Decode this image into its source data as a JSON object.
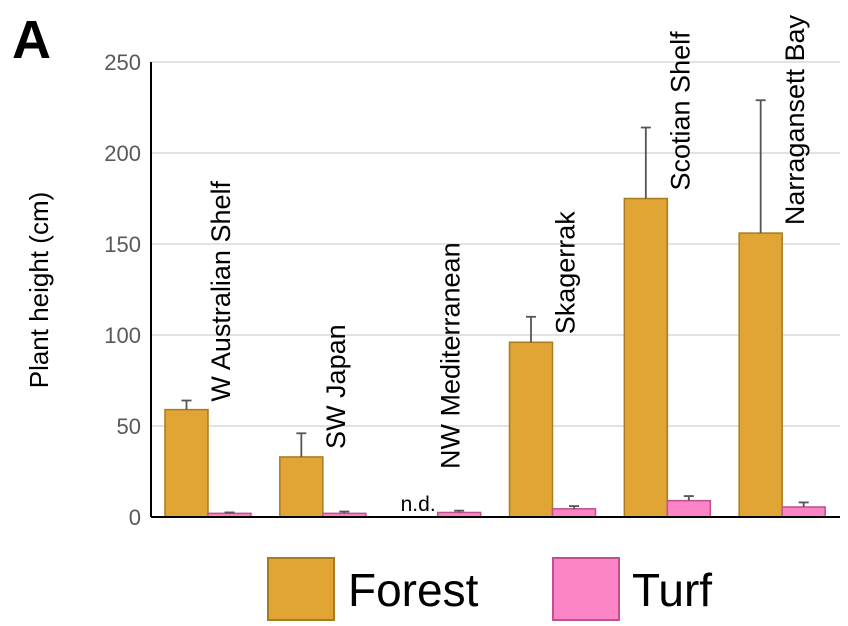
{
  "panel_label": "A",
  "legend": {
    "forest_label": "Forest",
    "turf_label": "Turf"
  },
  "colors": {
    "forest_fill": "#E0A534",
    "forest_stroke": "#A87B20",
    "turf_fill": "#FA84C6",
    "turf_stroke": "#C0508E",
    "grid": "#D9D9D9",
    "axis": "#000000",
    "error_bar": "#555555"
  },
  "chart_data": {
    "type": "bar",
    "ylabel": "Plant height (cm)",
    "ylim": [
      0,
      250
    ],
    "yticks": [
      0,
      50,
      100,
      150,
      200,
      250
    ],
    "grid": true,
    "legend_position": "bottom",
    "categories": [
      "W Australian Shelf",
      "SW Japan",
      "NW Mediterranean",
      "Skagerrak",
      "Scotian Shelf",
      "Narragansett Bay"
    ],
    "series": [
      {
        "name": "Forest",
        "values": [
          59,
          33,
          null,
          96,
          175,
          156
        ],
        "errors": [
          5,
          13,
          null,
          14,
          39,
          73
        ]
      },
      {
        "name": "Turf",
        "values": [
          2,
          2,
          2.5,
          4.5,
          9,
          5.5
        ],
        "errors": [
          0.5,
          1,
          1,
          1.5,
          2.5,
          2.5
        ]
      }
    ],
    "annotations": [
      {
        "category": "NW Mediterranean",
        "series": "Forest",
        "text": "n.d."
      }
    ]
  }
}
